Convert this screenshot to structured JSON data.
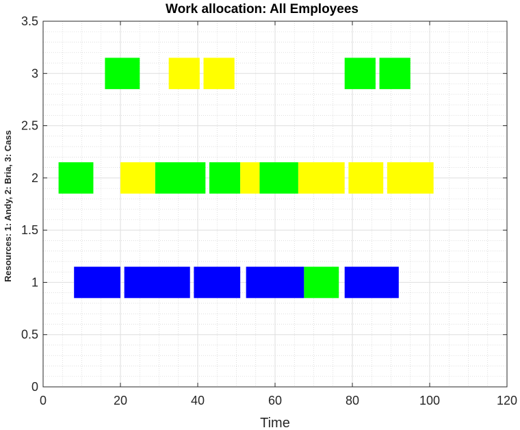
{
  "chart_data": {
    "type": "bar",
    "subtype": "gantt",
    "title": "Work allocation: All Employees",
    "xlabel": "Time",
    "ylabel": "Resources:    1: Andy,    2: Bria,    3: Cass",
    "xlim": [
      0,
      120
    ],
    "ylim": [
      0,
      3.5
    ],
    "xticks": [
      "0",
      "20",
      "40",
      "60",
      "80",
      "100",
      "120"
    ],
    "yticks": [
      "0",
      "0.5",
      "1",
      "1.5",
      "2",
      "2.5",
      "3",
      "3.5"
    ],
    "grid": true,
    "minor_grid": true,
    "colors": {
      "blue": "#0000ff",
      "green": "#00ff00",
      "yellow": "#ffff00"
    },
    "tasks": [
      {
        "resource": 1,
        "start": 8,
        "end": 20,
        "color": "blue"
      },
      {
        "resource": 1,
        "start": 21,
        "end": 38,
        "color": "blue"
      },
      {
        "resource": 1,
        "start": 39,
        "end": 51,
        "color": "blue"
      },
      {
        "resource": 1,
        "start": 52.5,
        "end": 67.5,
        "color": "blue"
      },
      {
        "resource": 1,
        "start": 67.5,
        "end": 76.5,
        "color": "green"
      },
      {
        "resource": 1,
        "start": 78,
        "end": 92,
        "color": "blue"
      },
      {
        "resource": 2,
        "start": 4,
        "end": 13,
        "color": "green"
      },
      {
        "resource": 2,
        "start": 20,
        "end": 29,
        "color": "yellow"
      },
      {
        "resource": 2,
        "start": 29,
        "end": 42,
        "color": "green"
      },
      {
        "resource": 2,
        "start": 43,
        "end": 51,
        "color": "green"
      },
      {
        "resource": 2,
        "start": 51,
        "end": 56,
        "color": "yellow"
      },
      {
        "resource": 2,
        "start": 56,
        "end": 66,
        "color": "green"
      },
      {
        "resource": 2,
        "start": 66,
        "end": 78,
        "color": "yellow"
      },
      {
        "resource": 2,
        "start": 79,
        "end": 88,
        "color": "yellow"
      },
      {
        "resource": 2,
        "start": 89,
        "end": 101,
        "color": "yellow"
      },
      {
        "resource": 3,
        "start": 16,
        "end": 25,
        "color": "green"
      },
      {
        "resource": 3,
        "start": 32.5,
        "end": 40.5,
        "color": "yellow"
      },
      {
        "resource": 3,
        "start": 41.5,
        "end": 49.5,
        "color": "yellow"
      },
      {
        "resource": 3,
        "start": 78,
        "end": 86,
        "color": "green"
      },
      {
        "resource": 3,
        "start": 87,
        "end": 95,
        "color": "green"
      }
    ]
  }
}
